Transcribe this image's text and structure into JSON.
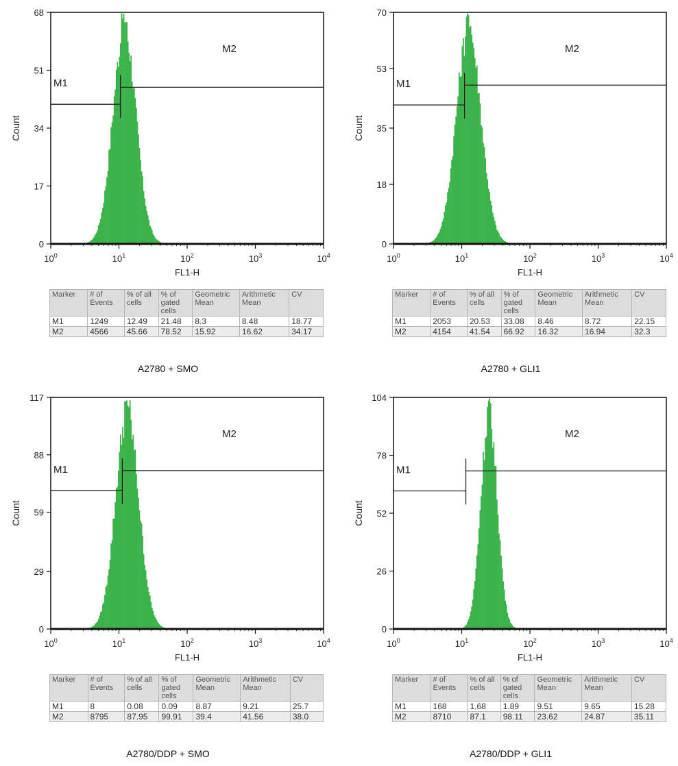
{
  "chart_data": [
    {
      "type": "histogram",
      "panel": "A2780 + SMO",
      "caption": "A2780 + SMO",
      "xlabel": "FL1-H",
      "ylabel": "Count",
      "xscale": "log",
      "xlim": [
        1,
        10000
      ],
      "x_ticks": [
        "0",
        "1",
        "2",
        "3",
        "4"
      ],
      "y_ticks": [
        0,
        17,
        34,
        51,
        68
      ],
      "ylim": [
        0,
        68
      ],
      "peak": {
        "log10_center": 1.08,
        "sigma": 0.17,
        "max": 68
      },
      "markers": [
        {
          "name": "M1",
          "label": "M1",
          "x_range": [
            1,
            10.5
          ],
          "level": 41
        },
        {
          "name": "M2",
          "label": "M2",
          "x_range": [
            10.5,
            10000
          ],
          "level": 46
        }
      ],
      "stats": {
        "headers": [
          "Marker",
          "# of Events",
          "% of all cells",
          "% of gated cells",
          "Geometric Mean",
          "Arithmetic Mean",
          "CV"
        ],
        "rows": [
          [
            "M1",
            "1249",
            "12.49",
            "21.48",
            "8.3",
            "8.48",
            "18.77"
          ],
          [
            "M2",
            "4566",
            "45.66",
            "78.52",
            "15.92",
            "16.62",
            "34.17"
          ]
        ]
      }
    },
    {
      "type": "histogram",
      "panel": "A2780 + GLI1",
      "caption": "A2780 + GLI1",
      "xlabel": "FL1-H",
      "ylabel": "Count",
      "xscale": "log",
      "xlim": [
        1,
        10000
      ],
      "x_ticks": [
        "0",
        "1",
        "2",
        "3",
        "4"
      ],
      "y_ticks": [
        0,
        18,
        35,
        53,
        70
      ],
      "ylim": [
        0,
        70
      ],
      "peak": {
        "log10_center": 1.1,
        "sigma": 0.18,
        "max": 70
      },
      "markers": [
        {
          "name": "M1",
          "label": "M1",
          "x_range": [
            1,
            11
          ],
          "level": 42
        },
        {
          "name": "M2",
          "label": "M2",
          "x_range": [
            11,
            10000
          ],
          "level": 48
        }
      ],
      "stats": {
        "headers": [
          "Marker",
          "# of Events",
          "% of all cells",
          "% of gated cells",
          "Geometric Mean",
          "Arithmetic Mean",
          "CV"
        ],
        "rows": [
          [
            "M1",
            "2053",
            "20.53",
            "33.08",
            "8.46",
            "8.72",
            "22.15"
          ],
          [
            "M2",
            "4154",
            "41.54",
            "66.92",
            "16.32",
            "16.94",
            "32.3"
          ]
        ]
      }
    },
    {
      "type": "histogram",
      "panel": "A2780/DDP + SMO",
      "caption": "A2780/DDP + SMO",
      "xlabel": "FL1-H",
      "ylabel": "Count",
      "xscale": "log",
      "xlim": [
        1,
        10000
      ],
      "x_ticks": [
        "0",
        "1",
        "2",
        "3",
        "4"
      ],
      "y_ticks": [
        0,
        29,
        59,
        88,
        117
      ],
      "ylim": [
        0,
        117
      ],
      "peak": {
        "log10_center": 1.12,
        "sigma": 0.17,
        "max": 117
      },
      "markers": [
        {
          "name": "M1",
          "label": "M1",
          "x_range": [
            1,
            11.2
          ],
          "level": 70
        },
        {
          "name": "M2",
          "label": "M2",
          "x_range": [
            11.2,
            10000
          ],
          "level": 80
        }
      ],
      "stats": {
        "headers": [
          "Marker",
          "# of Events",
          "% of all cells",
          "% of gated cells",
          "Geometric Mean",
          "Arithmetic Mean",
          "CV"
        ],
        "rows": [
          [
            "M1",
            "8",
            "0.08",
            "0.09",
            "8.87",
            "9.21",
            "25.7"
          ],
          [
            "M2",
            "8795",
            "87.95",
            "99.91",
            "39.4",
            "41.56",
            "38.0"
          ]
        ]
      }
    },
    {
      "type": "histogram",
      "panel": "A2780/DDP + GLI1",
      "caption": "A2780/DDP + GLI1",
      "xlabel": "FL1-H",
      "ylabel": "Count",
      "xscale": "log",
      "xlim": [
        1,
        10000
      ],
      "x_ticks": [
        "0",
        "1",
        "2",
        "3",
        "4"
      ],
      "y_ticks": [
        0,
        26,
        52,
        78,
        104
      ],
      "ylim": [
        0,
        104
      ],
      "peak": {
        "log10_center": 1.4,
        "sigma": 0.12,
        "max": 104
      },
      "markers": [
        {
          "name": "M1",
          "label": "M1",
          "x_range": [
            1,
            11.5
          ],
          "level": 62
        },
        {
          "name": "M2",
          "label": "M2",
          "x_range": [
            11.5,
            10000
          ],
          "level": 71
        }
      ],
      "stats": {
        "headers": [
          "Marker",
          "# of Events",
          "% of all cells",
          "% of gated cells",
          "Geometric Mean",
          "Arithmetic Mean",
          "CV"
        ],
        "rows": [
          [
            "M1",
            "168",
            "1.68",
            "1.89",
            "9.51",
            "9.65",
            "15.28"
          ],
          [
            "M2",
            "8710",
            "87.1",
            "98.11",
            "23.62",
            "24.87",
            "35.11"
          ]
        ]
      }
    }
  ],
  "colors": {
    "histogram_fill": "#3cb34a",
    "histogram_dark": "#2a9e3a",
    "axis": "#111111",
    "table_header_bg": "#dcdcdc",
    "table_m2_bg": "#ececec"
  }
}
